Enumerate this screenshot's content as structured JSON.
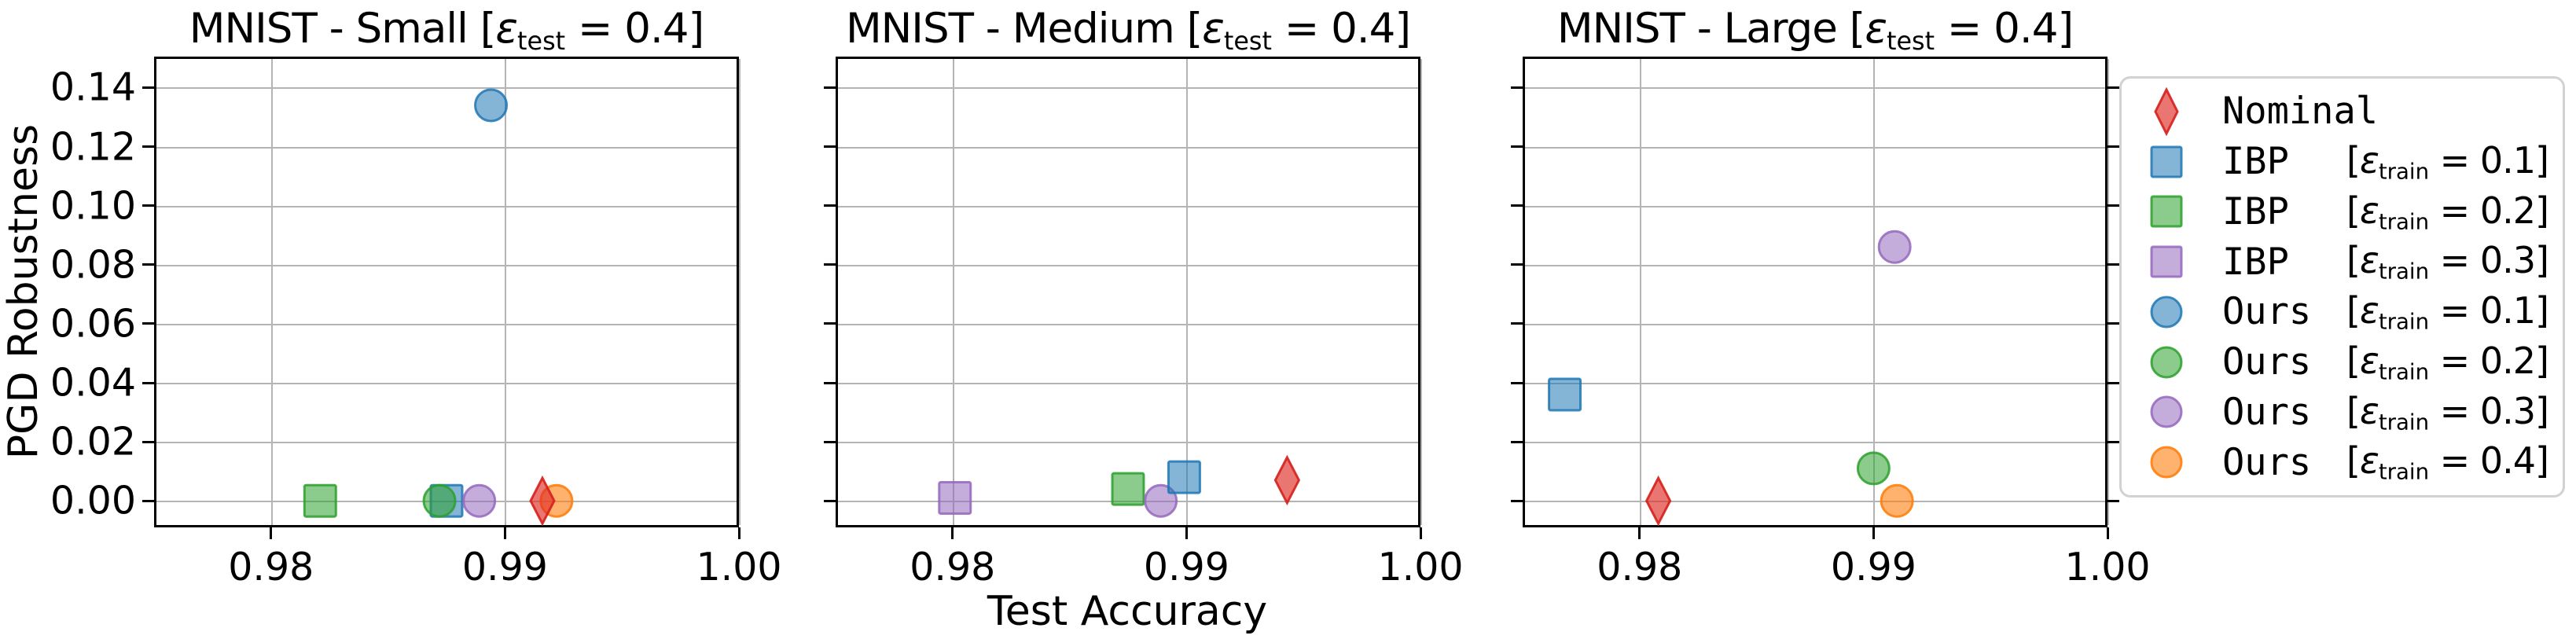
{
  "figure": {
    "xlabel": "Test Accuracy",
    "ylabel": "PGD Robustness"
  },
  "colors": {
    "blue": {
      "fill": "rgba(31,119,180,0.55)",
      "edge": "rgba(31,119,180,0.85)"
    },
    "green": {
      "fill": "rgba(44,160,44,0.55)",
      "edge": "rgba(44,160,44,0.85)"
    },
    "purple": {
      "fill": "rgba(148,103,189,0.55)",
      "edge": "rgba(148,103,189,0.85)"
    },
    "orange": {
      "fill": "rgba(255,127,14,0.60)",
      "edge": "rgba(255,127,14,0.90)"
    },
    "red": {
      "fill": "rgba(222,45,38,0.65)",
      "edge": "rgba(214,35,30,0.92)"
    },
    "grid": "#b4b4b4",
    "spine": "#000000",
    "legend_border": "#d2d2d2"
  },
  "chart_data": {
    "type": "scatter",
    "xlabel": "Test Accuracy",
    "ylabel": "PGD Robustness",
    "xlim": [
      0.975,
      1.0
    ],
    "ylim": [
      -0.009,
      0.1505
    ],
    "x_tick_values": [
      0.98,
      0.99,
      1.0
    ],
    "x_tick_labels": [
      "0.98",
      "0.99",
      "1.00"
    ],
    "y_tick_values": [
      0.0,
      0.02,
      0.04,
      0.06,
      0.08,
      0.1,
      0.12,
      0.14
    ],
    "y_tick_labels": [
      "0.00",
      "0.02",
      "0.04",
      "0.06",
      "0.08",
      "0.10",
      "0.12",
      "0.14"
    ],
    "grid": true,
    "legend_position": "right-outside",
    "eps_symbol": "ε",
    "series": [
      {
        "id": "nominal",
        "marker": "diamond",
        "color_key": "red",
        "label": "Nominal"
      },
      {
        "id": "ibp_01",
        "marker": "square",
        "color_key": "blue",
        "label": "IBP  [ε_train = 0.1]"
      },
      {
        "id": "ibp_02",
        "marker": "square",
        "color_key": "green",
        "label": "IBP  [ε_train = 0.2]"
      },
      {
        "id": "ibp_03",
        "marker": "square",
        "color_key": "purple",
        "label": "IBP  [ε_train = 0.3]"
      },
      {
        "id": "ours_01",
        "marker": "circle",
        "color_key": "blue",
        "label": "Ours [ε_train = 0.1]"
      },
      {
        "id": "ours_02",
        "marker": "circle",
        "color_key": "green",
        "label": "Ours [ε_train = 0.2]"
      },
      {
        "id": "ours_03",
        "marker": "circle",
        "color_key": "purple",
        "label": "Ours [ε_train = 0.3]"
      },
      {
        "id": "ours_04",
        "marker": "circle",
        "color_key": "orange",
        "label": "Ours [ε_train = 0.4]"
      }
    ],
    "subplots": [
      {
        "title_text": "MNIST - Small [ε_test = 0.4]",
        "title_prefix": "MNIST - Small ",
        "eps_sub": "test",
        "eps_value": "0.4",
        "show_y_tick_labels": true,
        "y_ticks_right": false,
        "points": [
          {
            "series": "ibp_01",
            "x": 0.9875,
            "y": 0.0
          },
          {
            "series": "ibp_02",
            "x": 0.9821,
            "y": 0.0
          },
          {
            "series": "ours_02",
            "x": 0.9872,
            "y": 0.0
          },
          {
            "series": "ours_03",
            "x": 0.9889,
            "y": 0.0
          },
          {
            "series": "ours_04",
            "x": 0.9922,
            "y": 0.0
          },
          {
            "series": "nominal",
            "x": 0.9916,
            "y": 0.0
          },
          {
            "series": "ours_01",
            "x": 0.9894,
            "y": 0.134
          }
        ]
      },
      {
        "title_text": "MNIST - Medium [ε_test = 0.4]",
        "title_prefix": "MNIST - Medium ",
        "eps_sub": "test",
        "eps_value": "0.4",
        "show_y_tick_labels": false,
        "y_ticks_right": false,
        "points": [
          {
            "series": "ibp_03",
            "x": 0.9801,
            "y": 0.001
          },
          {
            "series": "ibp_02",
            "x": 0.9875,
            "y": 0.004
          },
          {
            "series": "ours_03",
            "x": 0.9889,
            "y": 0.0
          },
          {
            "series": "ibp_01",
            "x": 0.9899,
            "y": 0.008
          },
          {
            "series": "nominal",
            "x": 0.9943,
            "y": 0.007
          }
        ]
      },
      {
        "title_text": "MNIST - Large [ε_test = 0.4]",
        "title_prefix": "MNIST - Large ",
        "eps_sub": "test",
        "eps_value": "0.4",
        "show_y_tick_labels": false,
        "y_ticks_right": true,
        "points": [
          {
            "series": "ibp_01",
            "x": 0.9768,
            "y": 0.036
          },
          {
            "series": "nominal",
            "x": 0.9808,
            "y": 0.0
          },
          {
            "series": "ours_02",
            "x": 0.99,
            "y": 0.011
          },
          {
            "series": "ours_03",
            "x": 0.9909,
            "y": 0.086
          },
          {
            "series": "ours_04",
            "x": 0.991,
            "y": 0.0
          }
        ]
      }
    ]
  },
  "legend": {
    "bracket_open": "[",
    "bracket_close": "]",
    "equals": " = ",
    "entries": [
      {
        "series": "nominal",
        "name": "Nominal",
        "eps_sub": "",
        "eps_value": ""
      },
      {
        "series": "ibp_01",
        "name": "IBP",
        "eps_sub": "train",
        "eps_value": "0.1"
      },
      {
        "series": "ibp_02",
        "name": "IBP",
        "eps_sub": "train",
        "eps_value": "0.2"
      },
      {
        "series": "ibp_03",
        "name": "IBP",
        "eps_sub": "train",
        "eps_value": "0.3"
      },
      {
        "series": "ours_01",
        "name": "Ours",
        "eps_sub": "train",
        "eps_value": "0.1"
      },
      {
        "series": "ours_02",
        "name": "Ours",
        "eps_sub": "train",
        "eps_value": "0.2"
      },
      {
        "series": "ours_03",
        "name": "Ours",
        "eps_sub": "train",
        "eps_value": "0.3"
      },
      {
        "series": "ours_04",
        "name": "Ours",
        "eps_sub": "train",
        "eps_value": "0.4"
      }
    ]
  }
}
